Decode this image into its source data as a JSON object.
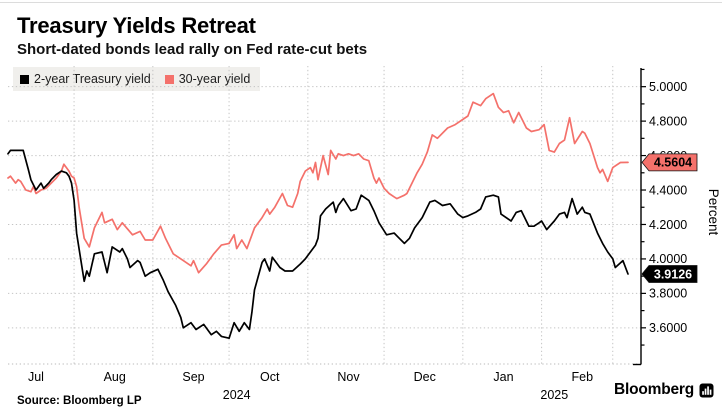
{
  "header": {
    "title": "Treasury Yields Retreat",
    "subtitle": "Short-dated bonds lead rally on Fed rate-cut bets"
  },
  "footer": {
    "source": "Source: Bloomberg LP",
    "brand": "Bloomberg"
  },
  "colors": {
    "two_year_line": "#000000",
    "thirty_year_line": "#f4716b",
    "gridline": "#c4c4c4",
    "legend_background": "#f0efec"
  },
  "chart_data": {
    "type": "line",
    "title": "Treasury Yields Retreat",
    "subtitle": "Short-dated bonds lead rally on Fed rate-cut bets",
    "ylabel": "Percent",
    "y_axis": {
      "side": "right",
      "label": "Percent",
      "major_ticks": [
        3.6,
        3.8,
        4.0,
        4.2,
        4.4,
        4.6,
        4.8,
        5.0
      ],
      "minor_ticks": [
        3.5,
        3.7,
        3.9,
        4.1,
        4.3,
        4.5,
        4.7,
        4.9,
        5.1
      ],
      "tick_decimals": 4,
      "range": [
        3.39,
        5.12
      ],
      "gridlines": "dotted"
    },
    "x_axis": {
      "range": [
        "2024-07-06",
        "2025-03-07"
      ],
      "month_labels": [
        "Jul",
        "Aug",
        "Sep",
        "Oct",
        "Nov",
        "Dec",
        "Jan",
        "Feb"
      ],
      "first_label_month": "2024-07",
      "year_labels": [
        {
          "text": "2024",
          "at": "2024-10-04"
        },
        {
          "text": "2025",
          "at": "2025-02-06"
        }
      ],
      "gridlines": "month-start-dotted"
    },
    "legend_position": "top-left",
    "series": [
      {
        "id": "thirty-year",
        "name": "30-year yield",
        "color": "#f4716b",
        "last_value_label": "4.5604",
        "badge_fill": "#f4716b",
        "badge_text_color": "#000000",
        "points": [
          [
            "2024-07-06",
            4.47
          ],
          [
            "2024-07-07",
            4.48
          ],
          [
            "2024-07-09",
            4.44
          ],
          [
            "2024-07-10",
            4.46
          ],
          [
            "2024-07-11",
            4.45
          ],
          [
            "2024-07-13",
            4.4
          ],
          [
            "2024-07-15",
            4.39
          ],
          [
            "2024-07-16",
            4.42
          ],
          [
            "2024-07-17",
            4.38
          ],
          [
            "2024-07-19",
            4.4
          ],
          [
            "2024-07-21",
            4.41
          ],
          [
            "2024-07-23",
            4.44
          ],
          [
            "2024-07-25",
            4.47
          ],
          [
            "2024-07-27",
            4.51
          ],
          [
            "2024-07-28",
            4.55
          ],
          [
            "2024-07-30",
            4.51
          ],
          [
            "2024-07-31",
            4.48
          ],
          [
            "2024-08-01",
            4.47
          ],
          [
            "2024-08-02",
            4.42
          ],
          [
            "2024-08-03",
            4.3
          ],
          [
            "2024-08-05",
            4.12
          ],
          [
            "2024-08-07",
            4.07
          ],
          [
            "2024-08-09",
            4.18
          ],
          [
            "2024-08-12",
            4.27
          ],
          [
            "2024-08-13",
            4.21
          ],
          [
            "2024-08-16",
            4.23
          ],
          [
            "2024-08-18",
            4.17
          ],
          [
            "2024-08-20",
            4.21
          ],
          [
            "2024-08-24",
            4.14
          ],
          [
            "2024-08-27",
            4.16
          ],
          [
            "2024-08-29",
            4.11
          ],
          [
            "2024-09-01",
            4.11
          ],
          [
            "2024-09-04",
            4.19
          ],
          [
            "2024-09-06",
            4.12
          ],
          [
            "2024-09-09",
            4.03
          ],
          [
            "2024-09-13",
            3.99
          ],
          [
            "2024-09-16",
            3.96
          ],
          [
            "2024-09-17",
            3.99
          ],
          [
            "2024-09-19",
            3.92
          ],
          [
            "2024-09-22",
            3.97
          ],
          [
            "2024-09-25",
            4.03
          ],
          [
            "2024-09-28",
            4.08
          ],
          [
            "2024-10-01",
            4.09
          ],
          [
            "2024-10-03",
            4.14
          ],
          [
            "2024-10-04",
            4.06
          ],
          [
            "2024-10-06",
            4.11
          ],
          [
            "2024-10-08",
            4.06
          ],
          [
            "2024-10-11",
            4.18
          ],
          [
            "2024-10-14",
            4.24
          ],
          [
            "2024-10-16",
            4.29
          ],
          [
            "2024-10-17",
            4.26
          ],
          [
            "2024-10-19",
            4.3
          ],
          [
            "2024-10-22",
            4.38
          ],
          [
            "2024-10-24",
            4.31
          ],
          [
            "2024-10-26",
            4.3
          ],
          [
            "2024-10-28",
            4.38
          ],
          [
            "2024-10-29",
            4.45
          ],
          [
            "2024-10-31",
            4.51
          ],
          [
            "2024-11-02",
            4.53
          ],
          [
            "2024-11-03",
            4.5
          ],
          [
            "2024-11-04",
            4.56
          ],
          [
            "2024-11-05",
            4.46
          ],
          [
            "2024-11-07",
            4.6
          ],
          [
            "2024-11-09",
            4.49
          ],
          [
            "2024-11-10",
            4.63
          ],
          [
            "2024-11-12",
            4.58
          ],
          [
            "2024-11-13",
            4.61
          ],
          [
            "2024-11-15",
            4.6
          ],
          [
            "2024-11-17",
            4.61
          ],
          [
            "2024-11-19",
            4.6
          ],
          [
            "2024-11-21",
            4.61
          ],
          [
            "2024-11-23",
            4.58
          ],
          [
            "2024-11-25",
            4.57
          ],
          [
            "2024-11-27",
            4.47
          ],
          [
            "2024-11-28",
            4.44
          ],
          [
            "2024-11-29",
            4.47
          ],
          [
            "2024-12-01",
            4.41
          ],
          [
            "2024-12-03",
            4.38
          ],
          [
            "2024-12-05",
            4.36
          ],
          [
            "2024-12-06",
            4.35
          ],
          [
            "2024-12-09",
            4.37
          ],
          [
            "2024-12-10",
            4.38
          ],
          [
            "2024-12-12",
            4.44
          ],
          [
            "2024-12-14",
            4.5
          ],
          [
            "2024-12-16",
            4.55
          ],
          [
            "2024-12-18",
            4.62
          ],
          [
            "2024-12-20",
            4.72
          ],
          [
            "2024-12-22",
            4.7
          ],
          [
            "2024-12-26",
            4.76
          ],
          [
            "2024-12-29",
            4.78
          ],
          [
            "2025-01-03",
            4.83
          ],
          [
            "2025-01-05",
            4.91
          ],
          [
            "2025-01-08",
            4.89
          ],
          [
            "2025-01-10",
            4.93
          ],
          [
            "2025-01-13",
            4.96
          ],
          [
            "2025-01-15",
            4.88
          ],
          [
            "2025-01-17",
            4.85
          ],
          [
            "2025-01-19",
            4.86
          ],
          [
            "2025-01-21",
            4.79
          ],
          [
            "2025-01-23",
            4.85
          ],
          [
            "2025-01-26",
            4.76
          ],
          [
            "2025-01-28",
            4.74
          ],
          [
            "2025-01-31",
            4.75
          ],
          [
            "2025-02-02",
            4.78
          ],
          [
            "2025-02-04",
            4.63
          ],
          [
            "2025-02-06",
            4.62
          ],
          [
            "2025-02-08",
            4.67
          ],
          [
            "2025-02-10",
            4.69
          ],
          [
            "2025-02-12",
            4.82
          ],
          [
            "2025-02-14",
            4.67
          ],
          [
            "2025-02-17",
            4.74
          ],
          [
            "2025-02-18",
            4.73
          ],
          [
            "2025-02-20",
            4.67
          ],
          [
            "2025-02-23",
            4.53
          ],
          [
            "2025-02-24",
            4.5
          ],
          [
            "2025-02-25",
            4.52
          ],
          [
            "2025-02-27",
            4.45
          ],
          [
            "2025-03-01",
            4.53
          ],
          [
            "2025-03-04",
            4.56
          ],
          [
            "2025-03-07",
            4.5604
          ]
        ]
      },
      {
        "id": "two-year",
        "name": "2-year Treasury yield",
        "color": "#000000",
        "last_value_label": "3.9126",
        "badge_fill": "#000000",
        "badge_text_color": "#ffffff",
        "points": [
          [
            "2024-07-06",
            4.61
          ],
          [
            "2024-07-07",
            4.63
          ],
          [
            "2024-07-12",
            4.63
          ],
          [
            "2024-07-14",
            4.52
          ],
          [
            "2024-07-15",
            4.46
          ],
          [
            "2024-07-17",
            4.4
          ],
          [
            "2024-07-19",
            4.44
          ],
          [
            "2024-07-20",
            4.41
          ],
          [
            "2024-07-22",
            4.44
          ],
          [
            "2024-07-23",
            4.46
          ],
          [
            "2024-07-25",
            4.49
          ],
          [
            "2024-07-27",
            4.51
          ],
          [
            "2024-07-29",
            4.5
          ],
          [
            "2024-07-30",
            4.48
          ],
          [
            "2024-07-31",
            4.44
          ],
          [
            "2024-08-01",
            4.34
          ],
          [
            "2024-08-02",
            4.15
          ],
          [
            "2024-08-05",
            3.87
          ],
          [
            "2024-08-06",
            3.93
          ],
          [
            "2024-08-07",
            3.9
          ],
          [
            "2024-08-09",
            4.03
          ],
          [
            "2024-08-12",
            4.04
          ],
          [
            "2024-08-14",
            3.92
          ],
          [
            "2024-08-16",
            4.07
          ],
          [
            "2024-08-19",
            4.04
          ],
          [
            "2024-08-20",
            4.06
          ],
          [
            "2024-08-22",
            4.0
          ],
          [
            "2024-08-23",
            3.95
          ],
          [
            "2024-08-26",
            3.99
          ],
          [
            "2024-08-27",
            3.98
          ],
          [
            "2024-08-29",
            3.9
          ],
          [
            "2024-08-31",
            3.92
          ],
          [
            "2024-09-03",
            3.94
          ],
          [
            "2024-09-05",
            3.88
          ],
          [
            "2024-09-07",
            3.81
          ],
          [
            "2024-09-10",
            3.73
          ],
          [
            "2024-09-12",
            3.66
          ],
          [
            "2024-09-13",
            3.6
          ],
          [
            "2024-09-16",
            3.63
          ],
          [
            "2024-09-18",
            3.59
          ],
          [
            "2024-09-21",
            3.62
          ],
          [
            "2024-09-24",
            3.56
          ],
          [
            "2024-09-26",
            3.58
          ],
          [
            "2024-09-28",
            3.55
          ],
          [
            "2024-10-01",
            3.54
          ],
          [
            "2024-10-03",
            3.63
          ],
          [
            "2024-10-05",
            3.58
          ],
          [
            "2024-10-07",
            3.63
          ],
          [
            "2024-10-09",
            3.59
          ],
          [
            "2024-10-10",
            3.69
          ],
          [
            "2024-10-11",
            3.82
          ],
          [
            "2024-10-14",
            3.98
          ],
          [
            "2024-10-15",
            4.0
          ],
          [
            "2024-10-17",
            3.93
          ],
          [
            "2024-10-18",
            4.01
          ],
          [
            "2024-10-21",
            3.95
          ],
          [
            "2024-10-23",
            3.93
          ],
          [
            "2024-10-26",
            3.93
          ],
          [
            "2024-10-29",
            3.97
          ],
          [
            "2024-10-31",
            4.0
          ],
          [
            "2024-11-01",
            4.02
          ],
          [
            "2024-11-04",
            4.08
          ],
          [
            "2024-11-05",
            4.12
          ],
          [
            "2024-11-06",
            4.25
          ],
          [
            "2024-11-08",
            4.29
          ],
          [
            "2024-11-11",
            4.33
          ],
          [
            "2024-11-12",
            4.27
          ],
          [
            "2024-11-13",
            4.31
          ],
          [
            "2024-11-15",
            4.35
          ],
          [
            "2024-11-18",
            4.28
          ],
          [
            "2024-11-20",
            4.29
          ],
          [
            "2024-11-22",
            4.37
          ],
          [
            "2024-11-25",
            4.34
          ],
          [
            "2024-11-27",
            4.28
          ],
          [
            "2024-11-29",
            4.21
          ],
          [
            "2024-12-02",
            4.14
          ],
          [
            "2024-12-05",
            4.15
          ],
          [
            "2024-12-07",
            4.12
          ],
          [
            "2024-12-09",
            4.09
          ],
          [
            "2024-12-11",
            4.12
          ],
          [
            "2024-12-13",
            4.18
          ],
          [
            "2024-12-16",
            4.24
          ],
          [
            "2024-12-19",
            4.33
          ],
          [
            "2024-12-21",
            4.34
          ],
          [
            "2024-12-24",
            4.31
          ],
          [
            "2024-12-27",
            4.32
          ],
          [
            "2024-12-30",
            4.26
          ],
          [
            "2025-01-01",
            4.24
          ],
          [
            "2025-01-03",
            4.25
          ],
          [
            "2025-01-06",
            4.27
          ],
          [
            "2025-01-08",
            4.29
          ],
          [
            "2025-01-10",
            4.36
          ],
          [
            "2025-01-13",
            4.37
          ],
          [
            "2025-01-15",
            4.36
          ],
          [
            "2025-01-16",
            4.26
          ],
          [
            "2025-01-20",
            4.22
          ],
          [
            "2025-01-22",
            4.27
          ],
          [
            "2025-01-24",
            4.28
          ],
          [
            "2025-01-27",
            4.19
          ],
          [
            "2025-01-29",
            4.19
          ],
          [
            "2025-01-31",
            4.21
          ],
          [
            "2025-02-01",
            4.22
          ],
          [
            "2025-02-03",
            4.17
          ],
          [
            "2025-02-06",
            4.22
          ],
          [
            "2025-02-08",
            4.26
          ],
          [
            "2025-02-10",
            4.27
          ],
          [
            "2025-02-11",
            4.24
          ],
          [
            "2025-02-13",
            4.35
          ],
          [
            "2025-02-15",
            4.26
          ],
          [
            "2025-02-17",
            4.3
          ],
          [
            "2025-02-18",
            4.27
          ],
          [
            "2025-02-20",
            4.26
          ],
          [
            "2025-02-23",
            4.15
          ],
          [
            "2025-02-25",
            4.09
          ],
          [
            "2025-02-27",
            4.04
          ],
          [
            "2025-03-01",
            4.0
          ],
          [
            "2025-03-02",
            3.95
          ],
          [
            "2025-03-05",
            3.99
          ],
          [
            "2025-03-07",
            3.9126
          ]
        ]
      }
    ]
  }
}
